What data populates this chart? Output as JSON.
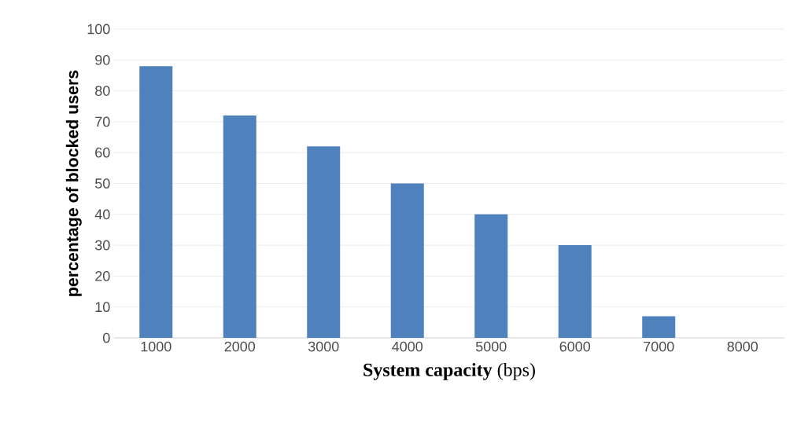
{
  "chart_data": {
    "type": "bar",
    "categories": [
      "1000",
      "2000",
      "3000",
      "4000",
      "5000",
      "6000",
      "7000",
      "8000"
    ],
    "values": [
      88,
      72,
      62,
      50,
      40,
      30,
      7,
      0
    ],
    "color": "#4f81bd",
    "xlabel": "**System capacity** (bps)",
    "ylabel": "percentage of blocked users",
    "ylim": [
      0,
      100
    ],
    "yticks": [
      0,
      10,
      20,
      30,
      40,
      50,
      60,
      70,
      80,
      90,
      100
    ],
    "grid": "y"
  }
}
